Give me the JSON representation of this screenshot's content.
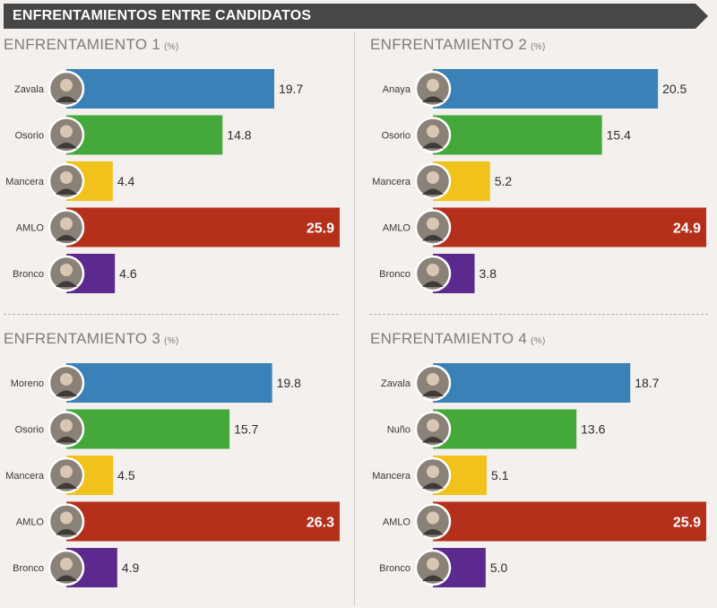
{
  "header": {
    "title": "ENFRENTAMIENTOS ENTRE CANDIDATOS"
  },
  "colors": {
    "banner": "#474747",
    "bar_blue": "#3a81b8",
    "bar_green": "#44a83a",
    "bar_yellow": "#f1c21b",
    "bar_red": "#b4301b",
    "bar_purple": "#5c2a8f",
    "avatar_ring": "#ffffff",
    "avatar_fill": "#8a8178"
  },
  "chart_data": [
    {
      "type": "bar",
      "title": "ENFRENTAMIENTO 1",
      "unit": "(%)",
      "categories": [
        "Zavala",
        "Osorio",
        "Mancera",
        "AMLO",
        "Bronco"
      ],
      "values": [
        19.7,
        14.8,
        4.4,
        25.9,
        4.6
      ],
      "value_labels": [
        "19.7",
        "14.8",
        "4.4",
        "25.9",
        "4.6"
      ],
      "colors": [
        "#3a81b8",
        "#44a83a",
        "#f1c21b",
        "#b4301b",
        "#5c2a8f"
      ],
      "xlim": [
        0,
        25.9
      ]
    },
    {
      "type": "bar",
      "title": "ENFRENTAMIENTO 2",
      "unit": "(%)",
      "categories": [
        "Anaya",
        "Osorio",
        "Mancera",
        "AMLO",
        "Bronco"
      ],
      "values": [
        20.5,
        15.4,
        5.2,
        24.9,
        3.8
      ],
      "value_labels": [
        "20.5",
        "15.4",
        "5.2",
        "24.9",
        "3.8"
      ],
      "colors": [
        "#3a81b8",
        "#44a83a",
        "#f1c21b",
        "#b4301b",
        "#5c2a8f"
      ],
      "xlim": [
        0,
        24.9
      ]
    },
    {
      "type": "bar",
      "title": "ENFRENTAMIENTO 3",
      "unit": "(%)",
      "categories": [
        "Moreno",
        "Osorio",
        "Mancera",
        "AMLO",
        "Bronco"
      ],
      "values": [
        19.8,
        15.7,
        4.5,
        26.3,
        4.9
      ],
      "value_labels": [
        "19.8",
        "15.7",
        "4.5",
        "26.3",
        "4.9"
      ],
      "colors": [
        "#3a81b8",
        "#44a83a",
        "#f1c21b",
        "#b4301b",
        "#5c2a8f"
      ],
      "xlim": [
        0,
        26.3
      ]
    },
    {
      "type": "bar",
      "title": "ENFRENTAMIENTO 4",
      "unit": "(%)",
      "categories": [
        "Zavala",
        "Nuño",
        "Mancera",
        "AMLO",
        "Bronco"
      ],
      "values": [
        18.7,
        13.6,
        5.1,
        25.9,
        5.0
      ],
      "value_labels": [
        "18.7",
        "13.6",
        "5.1",
        "25.9",
        "5.0"
      ],
      "colors": [
        "#3a81b8",
        "#44a83a",
        "#f1c21b",
        "#b4301b",
        "#5c2a8f"
      ],
      "xlim": [
        0,
        25.9
      ]
    }
  ]
}
